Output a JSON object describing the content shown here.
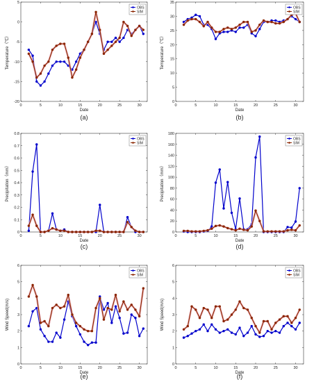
{
  "chart_data": [
    {
      "type": "line",
      "panel_label": "(a)",
      "xlabel": "Date",
      "ylabel": "Temperature（℃）",
      "xlim": [
        0,
        32
      ],
      "ylim": [
        -20,
        5
      ],
      "xticks": [
        0,
        5,
        10,
        15,
        20,
        25,
        30
      ],
      "yticks": [
        -20,
        -15,
        -10,
        -5,
        0,
        5
      ],
      "legend": "top-right",
      "series": [
        {
          "name": "OBS",
          "color": "#0000cc",
          "x": [
            2,
            3,
            4,
            5,
            6,
            7,
            8,
            9,
            10,
            11,
            12,
            13,
            14,
            15,
            16,
            17,
            18,
            19,
            20,
            21,
            22,
            23,
            24,
            25,
            26,
            27,
            28,
            29,
            30,
            31
          ],
          "y": [
            -7,
            -8.5,
            -15,
            -16,
            -15,
            -13,
            -11,
            -10,
            -10,
            -10,
            -11,
            -12,
            -10,
            -8,
            -7,
            -5,
            -3,
            0,
            -3,
            -7,
            -5,
            -5,
            -4,
            -5,
            -4,
            -2,
            -3,
            -2,
            -1,
            -3
          ]
        },
        {
          "name": "SIM",
          "color": "#8b2500",
          "x": [
            2,
            3,
            4,
            5,
            6,
            7,
            8,
            9,
            10,
            11,
            12,
            13,
            14,
            15,
            16,
            17,
            18,
            19,
            20,
            21,
            22,
            23,
            24,
            25,
            26,
            27,
            28,
            29,
            30,
            31
          ],
          "y": [
            -8,
            -10,
            -14,
            -13,
            -11,
            -10,
            -7,
            -6,
            -5.5,
            -5.5,
            -9,
            -14,
            -12,
            -9,
            -7,
            -5,
            -3,
            2.5,
            -2,
            -8,
            -7,
            -6,
            -5,
            -4,
            0,
            -1,
            -3.5,
            -2,
            -1,
            -2
          ]
        }
      ]
    },
    {
      "type": "line",
      "panel_label": "(b)",
      "xlabel": "Date",
      "ylabel": "Temperature（℃）",
      "xlim": [
        0,
        32
      ],
      "ylim": [
        0,
        35
      ],
      "xticks": [
        0,
        5,
        10,
        15,
        20,
        25,
        30
      ],
      "yticks": [
        0,
        5,
        10,
        15,
        20,
        25,
        30,
        35
      ],
      "legend": "top-right",
      "series": [
        {
          "name": "OBS",
          "color": "#0000cc",
          "x": [
            2,
            3,
            4,
            5,
            6,
            7,
            8,
            9,
            10,
            11,
            12,
            13,
            14,
            15,
            16,
            17,
            18,
            19,
            20,
            21,
            22,
            23,
            24,
            25,
            26,
            27,
            28,
            29,
            30,
            31
          ],
          "y": [
            28,
            29,
            29.5,
            30.5,
            30,
            27,
            27,
            25.5,
            22,
            24,
            24.5,
            24.5,
            25,
            24.5,
            26,
            26,
            27,
            24,
            23,
            25.5,
            28,
            28,
            28.5,
            28.5,
            28,
            28.5,
            29,
            30,
            29,
            28
          ]
        },
        {
          "name": "SIM",
          "color": "#8b2500",
          "x": [
            2,
            3,
            4,
            5,
            6,
            7,
            8,
            9,
            10,
            11,
            12,
            13,
            14,
            15,
            16,
            17,
            18,
            19,
            20,
            21,
            22,
            23,
            24,
            25,
            26,
            27,
            28,
            29,
            30,
            31
          ],
          "y": [
            27,
            28.5,
            29,
            29,
            28,
            26.5,
            28,
            26,
            24.5,
            24.5,
            25.5,
            26,
            25.5,
            26,
            27,
            28,
            28,
            24.5,
            25,
            27,
            28.5,
            28,
            28,
            27.5,
            27.5,
            28,
            29,
            30.5,
            31,
            28
          ]
        }
      ]
    },
    {
      "type": "line",
      "panel_label": "(c)",
      "xlabel": "Date",
      "ylabel": "Precipitation（mm）",
      "xlim": [
        0,
        32
      ],
      "ylim": [
        0,
        0.8
      ],
      "xticks": [
        0,
        5,
        10,
        15,
        20,
        25,
        30
      ],
      "yticks": [
        0,
        0.1,
        0.2,
        0.3,
        0.4,
        0.5,
        0.6,
        0.7,
        0.8
      ],
      "legend": "top-right",
      "series": [
        {
          "name": "OBS",
          "color": "#0000cc",
          "x": [
            2,
            3,
            4,
            5,
            6,
            7,
            8,
            9,
            10,
            11,
            12,
            13,
            14,
            15,
            16,
            17,
            18,
            19,
            20,
            21,
            22,
            23,
            24,
            25,
            26,
            27,
            28,
            29,
            30,
            31
          ],
          "y": [
            0.01,
            0.49,
            0.71,
            0,
            0,
            0.01,
            0.15,
            0.02,
            0.01,
            0.02,
            0,
            0,
            0,
            0,
            0,
            0,
            0,
            0,
            0.22,
            0,
            0,
            0,
            0,
            0,
            0,
            0.12,
            0.04,
            0,
            0,
            0
          ]
        },
        {
          "name": "SIM",
          "color": "#8b2500",
          "x": [
            2,
            3,
            4,
            5,
            6,
            7,
            8,
            9,
            10,
            11,
            12,
            13,
            14,
            15,
            16,
            17,
            18,
            19,
            20,
            21,
            22,
            23,
            24,
            25,
            26,
            27,
            28,
            29,
            30,
            31
          ],
          "y": [
            0.05,
            0.14,
            0.05,
            0,
            0,
            0.01,
            0.03,
            0.02,
            0.01,
            0.01,
            0,
            0,
            0,
            0,
            0,
            0,
            0,
            0.01,
            0.01,
            0,
            0,
            0,
            0,
            0,
            0,
            0.08,
            0.04,
            0.01,
            0,
            0
          ]
        }
      ]
    },
    {
      "type": "line",
      "panel_label": "(d)",
      "xlabel": "Date",
      "ylabel": "Precipitation（mm）",
      "xlim": [
        0,
        32
      ],
      "ylim": [
        0,
        180
      ],
      "xticks": [
        0,
        5,
        10,
        15,
        20,
        25,
        30
      ],
      "yticks": [
        0,
        20,
        40,
        60,
        80,
        100,
        120,
        140,
        160,
        180
      ],
      "legend": "top-right",
      "series": [
        {
          "name": "OBS",
          "color": "#0000cc",
          "x": [
            2,
            3,
            4,
            5,
            6,
            7,
            8,
            9,
            10,
            11,
            12,
            13,
            14,
            15,
            16,
            17,
            18,
            19,
            20,
            21,
            22,
            23,
            24,
            25,
            26,
            27,
            28,
            29,
            30,
            31
          ],
          "y": [
            1,
            0,
            0,
            0,
            0,
            1,
            2,
            10,
            90,
            114,
            43,
            91,
            35,
            5,
            61,
            5,
            5,
            14,
            136,
            174,
            0,
            0,
            0,
            0,
            0,
            0,
            9,
            8,
            19,
            80
          ]
        },
        {
          "name": "SIM",
          "color": "#8b2500",
          "x": [
            2,
            3,
            4,
            5,
            6,
            7,
            8,
            9,
            10,
            11,
            12,
            13,
            14,
            15,
            16,
            17,
            18,
            19,
            20,
            21,
            22,
            23,
            24,
            25,
            26,
            27,
            28,
            29,
            30,
            31
          ],
          "y": [
            2,
            2,
            1,
            1,
            1,
            2,
            3,
            6,
            11,
            12,
            10,
            7,
            5,
            3,
            6,
            4,
            3,
            10,
            39,
            20,
            1,
            1,
            1,
            1,
            1,
            1,
            3,
            4,
            3,
            12
          ]
        }
      ]
    },
    {
      "type": "line",
      "panel_label": "(e)",
      "xlabel": "Date",
      "ylabel": "Wind Speed(m/s)",
      "xlim": [
        0,
        32
      ],
      "ylim": [
        0,
        6
      ],
      "xticks": [
        0,
        5,
        10,
        15,
        20,
        25,
        30
      ],
      "yticks": [
        0,
        1,
        2,
        3,
        4,
        5,
        6
      ],
      "legend": "top-right",
      "series": [
        {
          "name": "OBS",
          "color": "#0000cc",
          "x": [
            2,
            3,
            4,
            5,
            6,
            7,
            8,
            9,
            10,
            11,
            12,
            13,
            14,
            15,
            16,
            17,
            18,
            19,
            20,
            21,
            22,
            23,
            24,
            25,
            26,
            27,
            28,
            29,
            30,
            31
          ],
          "y": [
            2.3,
            3.2,
            3.4,
            2.1,
            1.7,
            1.35,
            1.35,
            1.9,
            1.6,
            2.7,
            3.8,
            2.9,
            2.3,
            1.8,
            1.35,
            1.15,
            1.3,
            1.3,
            4.1,
            3.3,
            3.7,
            2.5,
            3.5,
            2.8,
            1.85,
            1.9,
            3.0,
            2.8,
            1.7,
            2.15
          ]
        },
        {
          "name": "SIM",
          "color": "#8b2500",
          "x": [
            2,
            3,
            4,
            5,
            6,
            7,
            8,
            9,
            10,
            11,
            12,
            13,
            14,
            15,
            16,
            17,
            18,
            19,
            20,
            21,
            22,
            23,
            24,
            25,
            26,
            27,
            28,
            29,
            30,
            31
          ],
          "y": [
            4.1,
            4.8,
            4.1,
            2.5,
            2.6,
            2.3,
            3.4,
            3.6,
            3.4,
            3.5,
            4.2,
            3.0,
            2.5,
            2.3,
            2.1,
            2.0,
            2.0,
            3.4,
            4.0,
            2.7,
            3.4,
            3.3,
            4.2,
            3.2,
            3.8,
            3.3,
            3.6,
            3.3,
            2.9,
            4.6
          ]
        }
      ]
    },
    {
      "type": "line",
      "panel_label": "(f)",
      "xlabel": "Date",
      "ylabel": "Wind Speed(m/s)",
      "xlim": [
        0,
        32
      ],
      "ylim": [
        0,
        6
      ],
      "xticks": [
        0,
        5,
        10,
        15,
        20,
        25,
        30
      ],
      "yticks": [
        0,
        1,
        2,
        3,
        4,
        5,
        6
      ],
      "legend": "top-right",
      "series": [
        {
          "name": "OBS",
          "color": "#0000cc",
          "x": [
            2,
            3,
            4,
            5,
            6,
            7,
            8,
            9,
            10,
            11,
            12,
            13,
            14,
            15,
            16,
            17,
            18,
            19,
            20,
            21,
            22,
            23,
            24,
            25,
            26,
            27,
            28,
            29,
            30,
            31
          ],
          "y": [
            1.6,
            1.7,
            1.85,
            2.0,
            2.1,
            2.4,
            2.0,
            2.4,
            2.1,
            1.9,
            2.0,
            2.1,
            1.9,
            1.8,
            2.2,
            1.7,
            1.9,
            2.3,
            1.8,
            1.65,
            1.7,
            2.0,
            1.9,
            2.0,
            1.9,
            2.3,
            2.5,
            2.3,
            2.1,
            2.5
          ]
        },
        {
          "name": "SIM",
          "color": "#8b2500",
          "x": [
            2,
            3,
            4,
            5,
            6,
            7,
            8,
            9,
            10,
            11,
            12,
            13,
            14,
            15,
            16,
            17,
            18,
            19,
            20,
            21,
            22,
            23,
            24,
            25,
            26,
            27,
            28,
            29,
            30,
            31
          ],
          "y": [
            2.1,
            2.3,
            3.5,
            3.3,
            2.8,
            3.4,
            3.3,
            2.8,
            3.5,
            3.5,
            2.6,
            2.7,
            3.0,
            3.3,
            3.8,
            3.4,
            3.3,
            2.8,
            2.3,
            1.9,
            2.6,
            2.6,
            2.1,
            2.5,
            2.7,
            2.9,
            2.9,
            2.5,
            2.8,
            3.3
          ]
        }
      ]
    }
  ]
}
